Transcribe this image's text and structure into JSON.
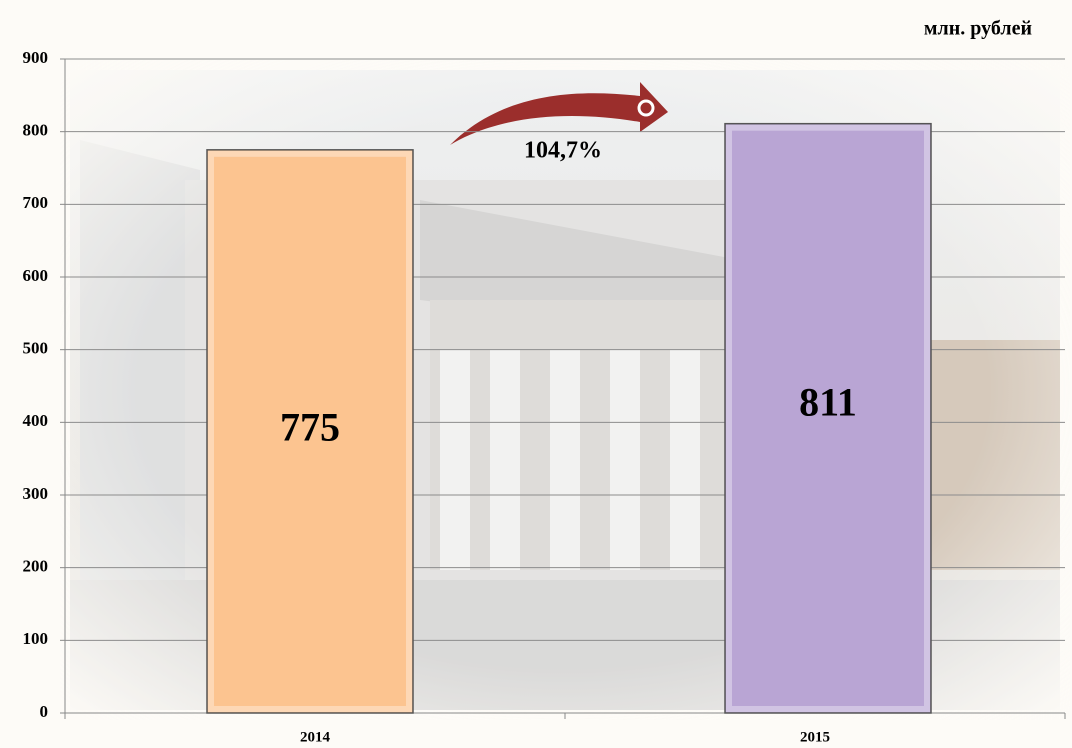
{
  "chart_data": {
    "type": "bar",
    "unit_label": "млн. рублей",
    "annotation": "104,7%",
    "categories": [
      "2014",
      "2015"
    ],
    "values": [
      775,
      811
    ],
    "colors": [
      "#fcc490",
      "#b9a5d4"
    ],
    "ylim": [
      0,
      900
    ],
    "yticks": [
      0,
      100,
      200,
      300,
      400,
      500,
      600,
      700,
      800,
      900
    ],
    "grid": true
  }
}
